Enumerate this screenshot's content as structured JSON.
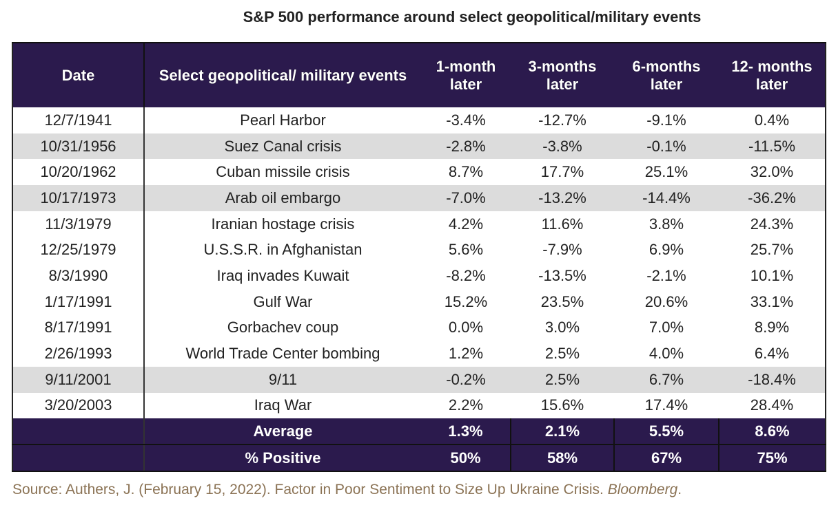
{
  "title": "S&P 500 performance around select geopolitical/military events",
  "headers": [
    "Date",
    "Select geopolitical/ military events",
    "1-month later",
    "3-months later",
    "6-months later",
    "12- months later"
  ],
  "rows": [
    {
      "date": "12/7/1941",
      "event": "Pearl Harbor",
      "m1": "-3.4%",
      "m3": "-12.7%",
      "m6": "-9.1%",
      "m12": "0.4%",
      "shaded": false
    },
    {
      "date": "10/31/1956",
      "event": "Suez Canal crisis",
      "m1": "-2.8%",
      "m3": "-3.8%",
      "m6": "-0.1%",
      "m12": "-11.5%",
      "shaded": true
    },
    {
      "date": "10/20/1962",
      "event": "Cuban missile crisis",
      "m1": "8.7%",
      "m3": "17.7%",
      "m6": "25.1%",
      "m12": "32.0%",
      "shaded": false
    },
    {
      "date": "10/17/1973",
      "event": "Arab oil embargo",
      "m1": "-7.0%",
      "m3": "-13.2%",
      "m6": "-14.4%",
      "m12": "-36.2%",
      "shaded": true
    },
    {
      "date": "11/3/1979",
      "event": "Iranian hostage crisis",
      "m1": "4.2%",
      "m3": "11.6%",
      "m6": "3.8%",
      "m12": "24.3%",
      "shaded": false
    },
    {
      "date": "12/25/1979",
      "event": "U.S.S.R. in Afghanistan",
      "m1": "5.6%",
      "m3": "-7.9%",
      "m6": "6.9%",
      "m12": "25.7%",
      "shaded": false
    },
    {
      "date": "8/3/1990",
      "event": "Iraq invades Kuwait",
      "m1": "-8.2%",
      "m3": "-13.5%",
      "m6": "-2.1%",
      "m12": "10.1%",
      "shaded": false
    },
    {
      "date": "1/17/1991",
      "event": "Gulf War",
      "m1": "15.2%",
      "m3": "23.5%",
      "m6": "20.6%",
      "m12": "33.1%",
      "shaded": false
    },
    {
      "date": "8/17/1991",
      "event": "Gorbachev coup",
      "m1": "0.0%",
      "m3": "3.0%",
      "m6": "7.0%",
      "m12": "8.9%",
      "shaded": false
    },
    {
      "date": "2/26/1993",
      "event": "World Trade Center bombing",
      "m1": "1.2%",
      "m3": "2.5%",
      "m6": "4.0%",
      "m12": "6.4%",
      "shaded": false
    },
    {
      "date": "9/11/2001",
      "event": "9/11",
      "m1": "-0.2%",
      "m3": "2.5%",
      "m6": "6.7%",
      "m12": "-18.4%",
      "shaded": true
    },
    {
      "date": "3/20/2003",
      "event": "Iraq War",
      "m1": "2.2%",
      "m3": "15.6%",
      "m6": "17.4%",
      "m12": "28.4%",
      "shaded": false
    }
  ],
  "summary": [
    {
      "label": "Average",
      "m1": "1.3%",
      "m3": "2.1%",
      "m6": "5.5%",
      "m12": "8.6%"
    },
    {
      "label": "% Positive",
      "m1": "50%",
      "m3": "58%",
      "m6": "67%",
      "m12": "75%"
    }
  ],
  "source": {
    "prefix": "Source: Authers, J. (February 15, 2022). Factor in Poor Sentiment to Size Up Ukraine Crisis. ",
    "publication": "Bloomberg",
    "suffix": "."
  },
  "colors": {
    "header": "#2b1a4d",
    "shaded_row": "#dcdcdc",
    "source_text": "#8b7355"
  }
}
